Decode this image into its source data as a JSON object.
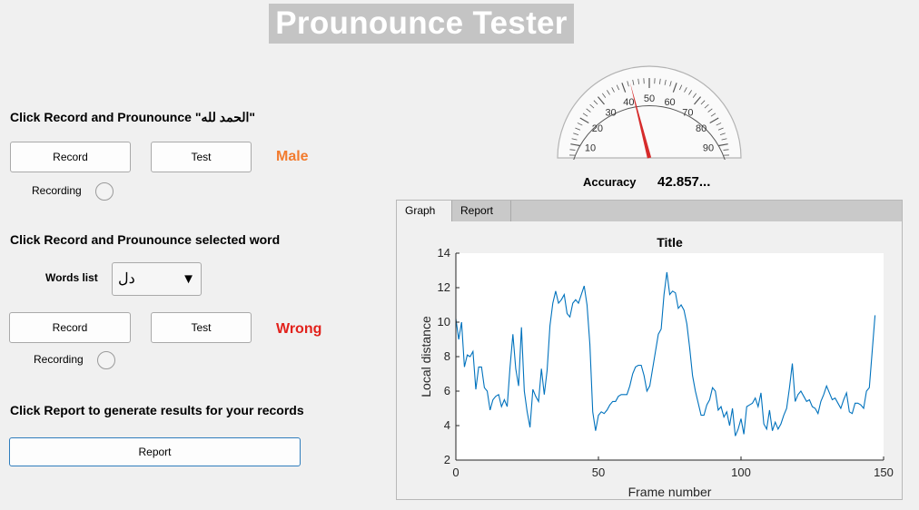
{
  "app": {
    "title": "Prounounce Tester"
  },
  "section1": {
    "heading": "Click Record and Prounounce \"الحمد لله\"",
    "record_label": "Record",
    "test_label": "Test",
    "result": "Male",
    "recording_label": "Recording"
  },
  "section2": {
    "heading": "Click Record and Prounounce selected word",
    "words_label": "Words list",
    "selected_word": "دل",
    "record_label": "Record",
    "test_label": "Test",
    "result": "Wrong",
    "recording_label": "Recording"
  },
  "section3": {
    "heading": "Click Report to generate results for your records",
    "report_label": "Report"
  },
  "gauge": {
    "min": 0,
    "max": 100,
    "major_ticks": [
      "0",
      "10",
      "20",
      "30",
      "40",
      "50",
      "60",
      "70",
      "80",
      "90",
      "100"
    ],
    "value": 42.857
  },
  "accuracy": {
    "label": "Accuracy",
    "value": "42.857..."
  },
  "tabs": [
    {
      "label": "Graph"
    },
    {
      "label": "Report"
    }
  ],
  "colors": {
    "male": "#f27b2e",
    "wrong": "#e2221c",
    "needle": "#d62b2b",
    "line": "#0072bd"
  },
  "chart_data": {
    "type": "line",
    "title": "Title",
    "xlabel": "Frame number",
    "ylabel": "Local distance",
    "xlim": [
      0,
      150
    ],
    "ylim": [
      2,
      14
    ],
    "xticks": [
      0,
      50,
      100,
      150
    ],
    "yticks": [
      2,
      4,
      6,
      8,
      10,
      12,
      14
    ],
    "grid": false,
    "series": [
      {
        "values": [
          10.2,
          9.0,
          10.0,
          7.4,
          8.1,
          8.0,
          8.3,
          6.1,
          7.4,
          7.4,
          6.2,
          6.0,
          4.9,
          5.5,
          5.7,
          5.8,
          5.1,
          5.5,
          5.1,
          7.4,
          9.3,
          7.3,
          6.3,
          9.7,
          6.0,
          4.8,
          3.9,
          6.1,
          5.7,
          5.4,
          7.3,
          5.8,
          7.2,
          9.8,
          11.1,
          11.8,
          11.1,
          11.3,
          11.6,
          10.5,
          10.3,
          11.1,
          11.3,
          11.1,
          11.6,
          12.1,
          11.0,
          8.7,
          4.8,
          3.7,
          4.6,
          4.8,
          4.7,
          4.9,
          5.2,
          5.4,
          5.4,
          5.7,
          5.8,
          5.8,
          5.8,
          6.3,
          7.0,
          7.4,
          7.5,
          7.5,
          6.9,
          6.0,
          6.3,
          7.3,
          8.3,
          9.3,
          9.6,
          11.6,
          12.9,
          11.6,
          11.8,
          11.7,
          10.8,
          11.0,
          10.7,
          9.9,
          8.5,
          6.9,
          6.0,
          5.3,
          4.6,
          4.6,
          5.2,
          5.5,
          6.2,
          6.0,
          4.9,
          5.1,
          4.5,
          4.8,
          4.0,
          5.0,
          3.4,
          3.8,
          4.4,
          3.5,
          5.1,
          5.2,
          5.3,
          5.6,
          5.1,
          5.9,
          4.1,
          3.8,
          4.9,
          3.7,
          4.2,
          3.8,
          4.1,
          4.6,
          5.0,
          6.2,
          7.6,
          5.4,
          5.8,
          6.0,
          5.7,
          5.4,
          5.5,
          5.1,
          5.0,
          4.7,
          5.4,
          5.8,
          6.3,
          5.9,
          5.5,
          5.6,
          5.3,
          5.0,
          5.5,
          5.9,
          4.8,
          4.7,
          5.3,
          5.3,
          5.2,
          5.0,
          6.0,
          6.2,
          8.3,
          10.4
        ]
      }
    ]
  }
}
